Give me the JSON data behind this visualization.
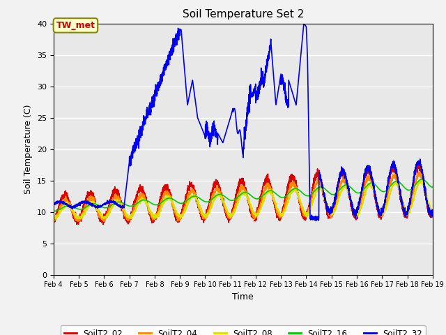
{
  "title": "Soil Temperature Set 2",
  "xlabel": "Time",
  "ylabel": "Soil Temperature (C)",
  "ylim": [
    0,
    40
  ],
  "bg_color": "#e8e8e8",
  "fig_bg_color": "#f2f2f2",
  "annotation_text": "TW_met",
  "annotation_bg": "#ffffcc",
  "annotation_border": "#cc0000",
  "legend_labels": [
    "SoilT2_02",
    "SoilT2_04",
    "SoilT2_08",
    "SoilT2_16",
    "SoilT2_32"
  ],
  "line_colors": [
    "#dd0000",
    "#ff8800",
    "#dddd00",
    "#00cc00",
    "#0000ee"
  ],
  "xtick_labels": [
    "Feb 4",
    "Feb 5",
    "Feb 6",
    "Feb 7",
    "Feb 8",
    "Feb 9",
    "Feb 10",
    "Feb 11",
    "Feb 12",
    "Feb 13",
    "Feb 14",
    "Feb 15",
    "Feb 16",
    "Feb 17",
    "Feb 18",
    "Feb 19"
  ],
  "ytick_vals": [
    0,
    5,
    10,
    15,
    20,
    25,
    30,
    35,
    40
  ]
}
